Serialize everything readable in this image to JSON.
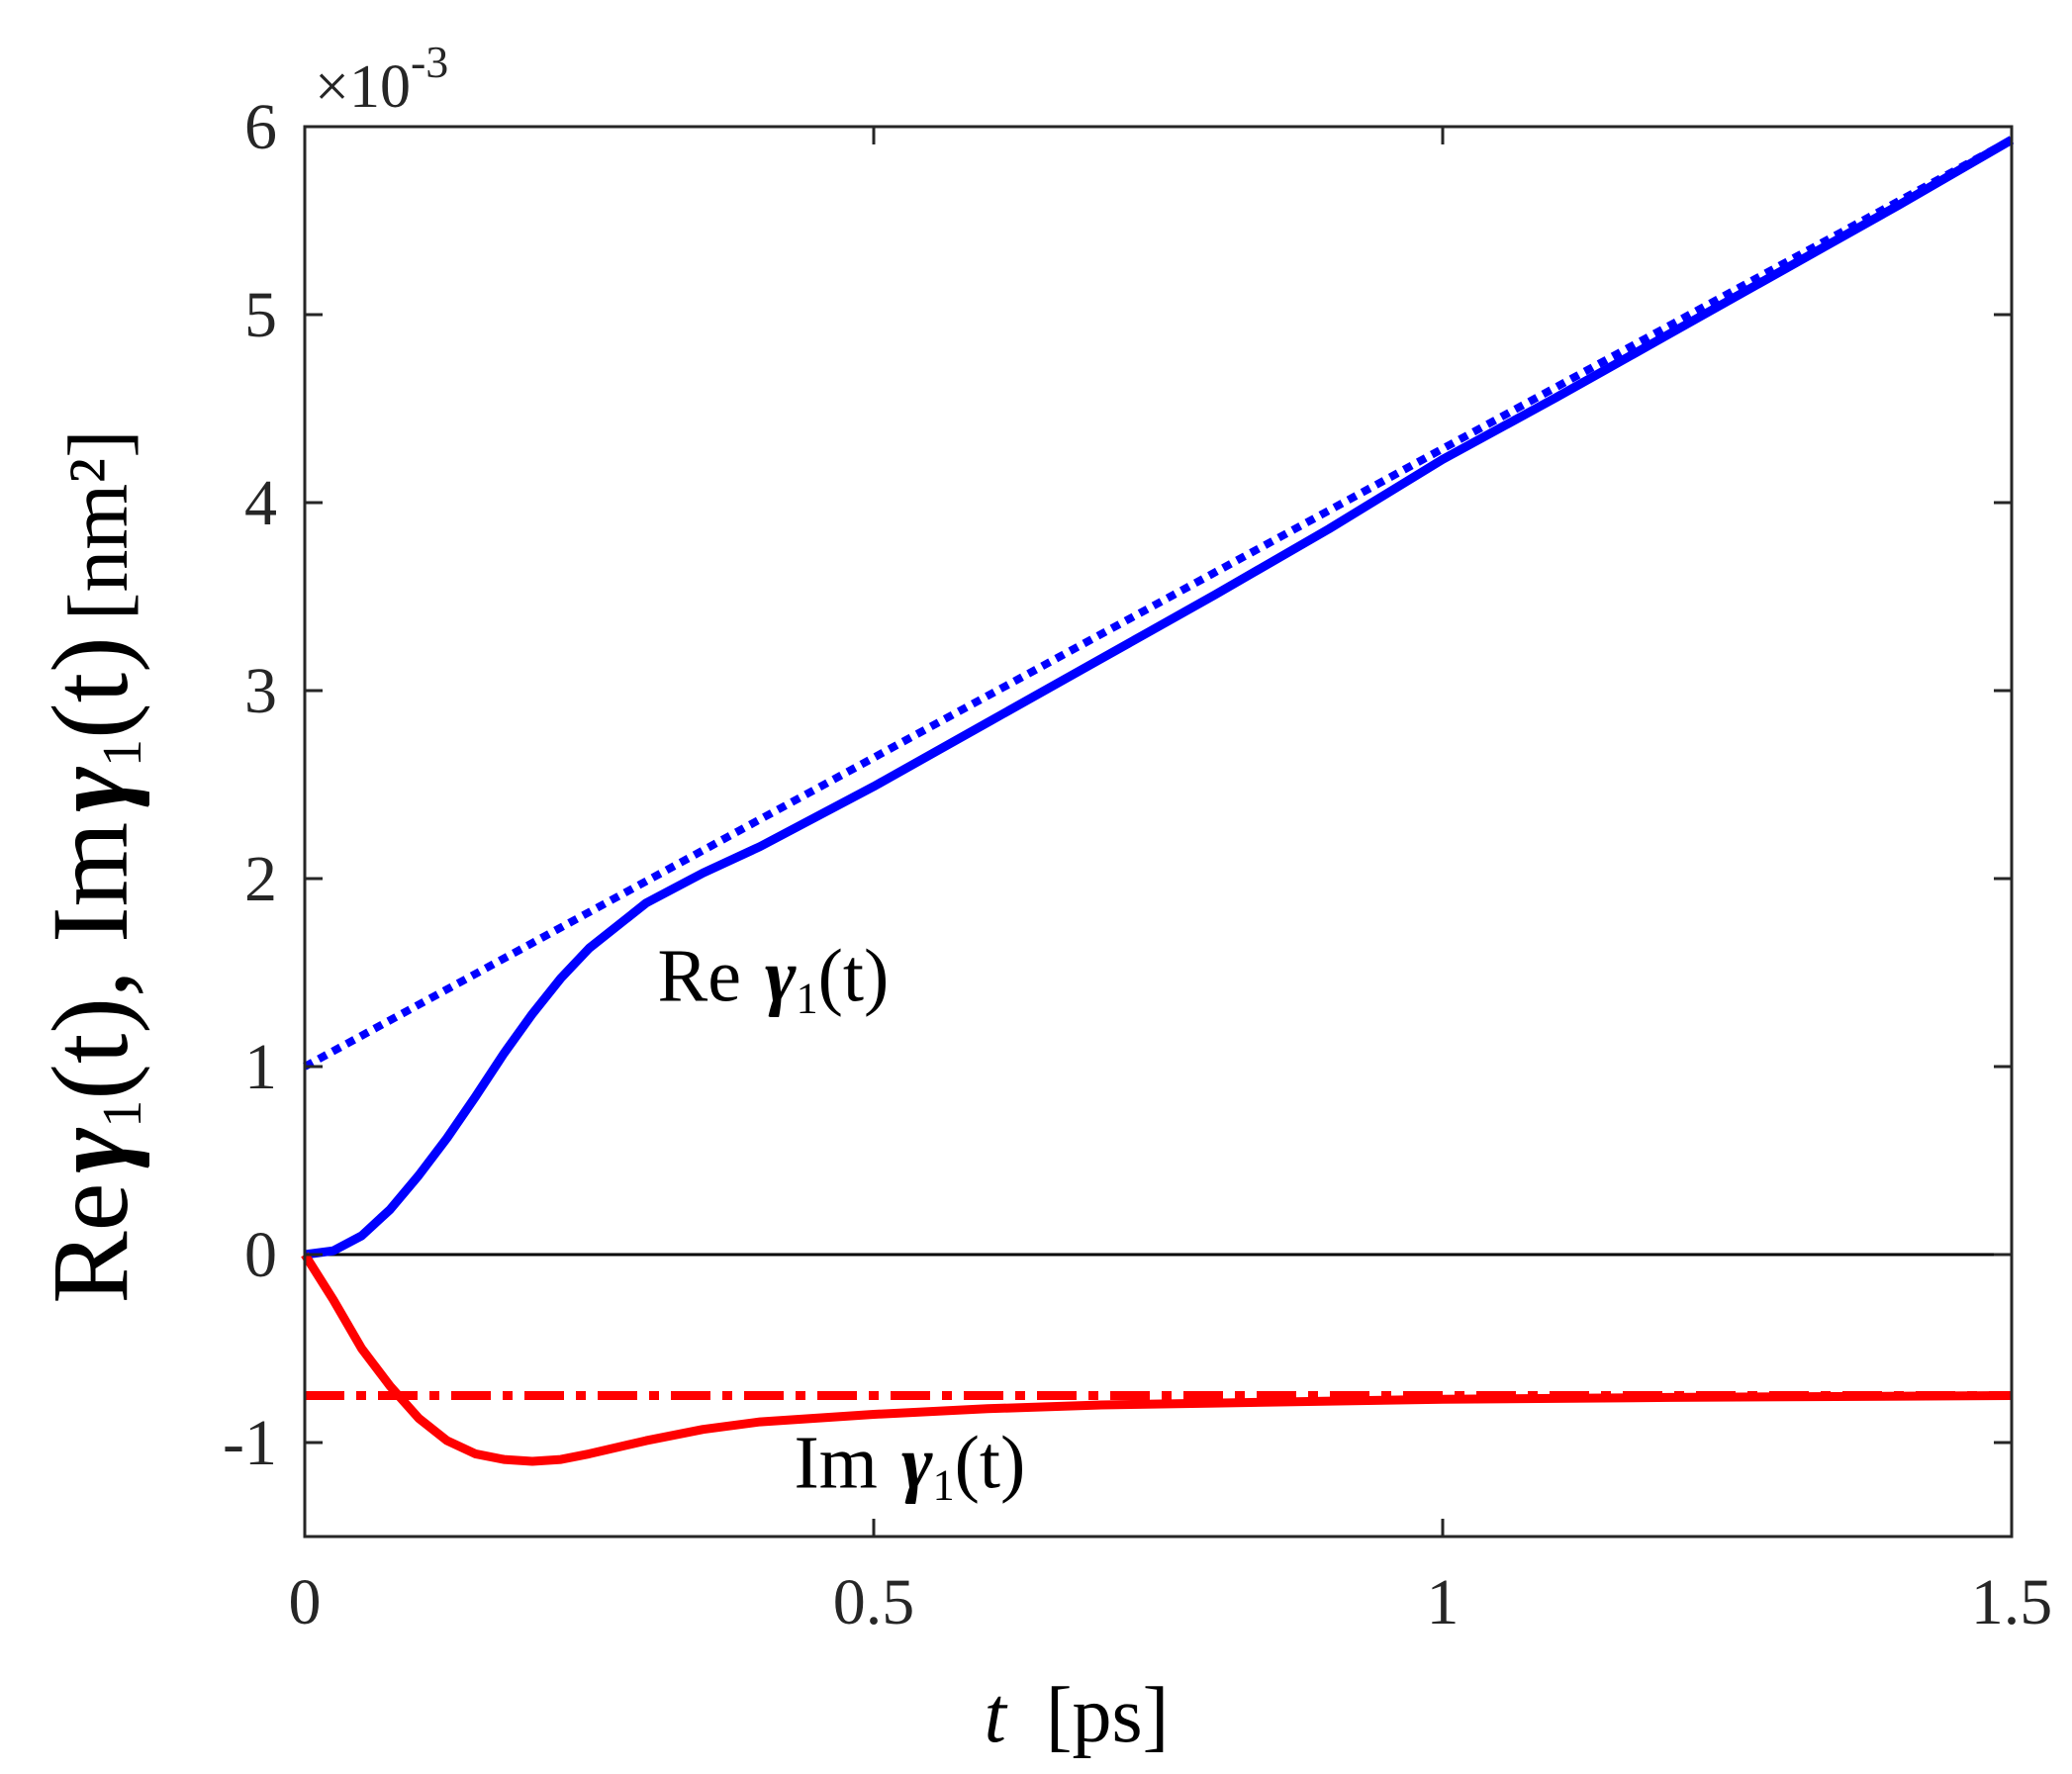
{
  "chart_data": {
    "type": "line",
    "xlabel": {
      "var": "t",
      "unit": "[ps]"
    },
    "ylabel": {
      "part1": "Re",
      "part2": "(t), Im",
      "part3": "(t)",
      "unit": "[nm²]"
    },
    "y_exponent": {
      "base": "×10",
      "power": "-3"
    },
    "xlim": [
      0,
      1.5
    ],
    "ylim": [
      -1.5,
      6
    ],
    "x_ticks": [
      0,
      0.5,
      1,
      1.5
    ],
    "x_tick_labels": [
      "0",
      "0.5",
      "1",
      "1.5"
    ],
    "y_ticks": [
      -1,
      0,
      1,
      2,
      3,
      4,
      5,
      6
    ],
    "y_tick_labels": [
      "-1",
      "0",
      "1",
      "2",
      "3",
      "4",
      "5",
      "6"
    ],
    "grid": false,
    "zero_line": true,
    "series": [
      {
        "color": "#0000ff",
        "style": "solid",
        "x": [
          0,
          0.025,
          0.05,
          0.075,
          0.1,
          0.125,
          0.15,
          0.175,
          0.2,
          0.225,
          0.25,
          0.3,
          0.35,
          0.4,
          0.5,
          0.6,
          0.7,
          0.8,
          0.9,
          1.0,
          1.1,
          1.2,
          1.3,
          1.4,
          1.5
        ],
        "values": [
          0,
          0.02,
          0.1,
          0.24,
          0.42,
          0.62,
          0.84,
          1.07,
          1.28,
          1.47,
          1.63,
          1.87,
          2.03,
          2.17,
          2.49,
          2.83,
          3.17,
          3.51,
          3.86,
          4.23,
          4.56,
          4.9,
          5.24,
          5.58,
          5.93
        ]
      },
      {
        "color": "#0000ff",
        "style": "dotted",
        "x": [
          0,
          1.5
        ],
        "values": [
          1.0,
          5.93
        ]
      },
      {
        "color": "#ff0000",
        "style": "solid",
        "x": [
          0,
          0.025,
          0.05,
          0.075,
          0.1,
          0.125,
          0.15,
          0.175,
          0.2,
          0.225,
          0.25,
          0.3,
          0.35,
          0.4,
          0.5,
          0.6,
          0.7,
          0.8,
          1.0,
          1.2,
          1.5
        ],
        "values": [
          0,
          -0.24,
          -0.5,
          -0.7,
          -0.87,
          -0.99,
          -1.06,
          -1.09,
          -1.1,
          -1.09,
          -1.06,
          -0.99,
          -0.93,
          -0.89,
          -0.85,
          -0.82,
          -0.8,
          -0.79,
          -0.77,
          -0.76,
          -0.75
        ]
      },
      {
        "color": "#ff0000",
        "style": "dashdot",
        "x": [
          0,
          1.5
        ],
        "values": [
          -0.75,
          -0.75
        ]
      }
    ],
    "annotations": [
      {
        "prefix": "Re",
        "var": "γ",
        "sub": "1",
        "suffix": "(t)",
        "x": 0.31,
        "y": 1.35
      },
      {
        "prefix": "Im",
        "var": "γ",
        "sub": "1",
        "suffix": "(t)",
        "x": 0.43,
        "y": -1.24
      }
    ]
  }
}
